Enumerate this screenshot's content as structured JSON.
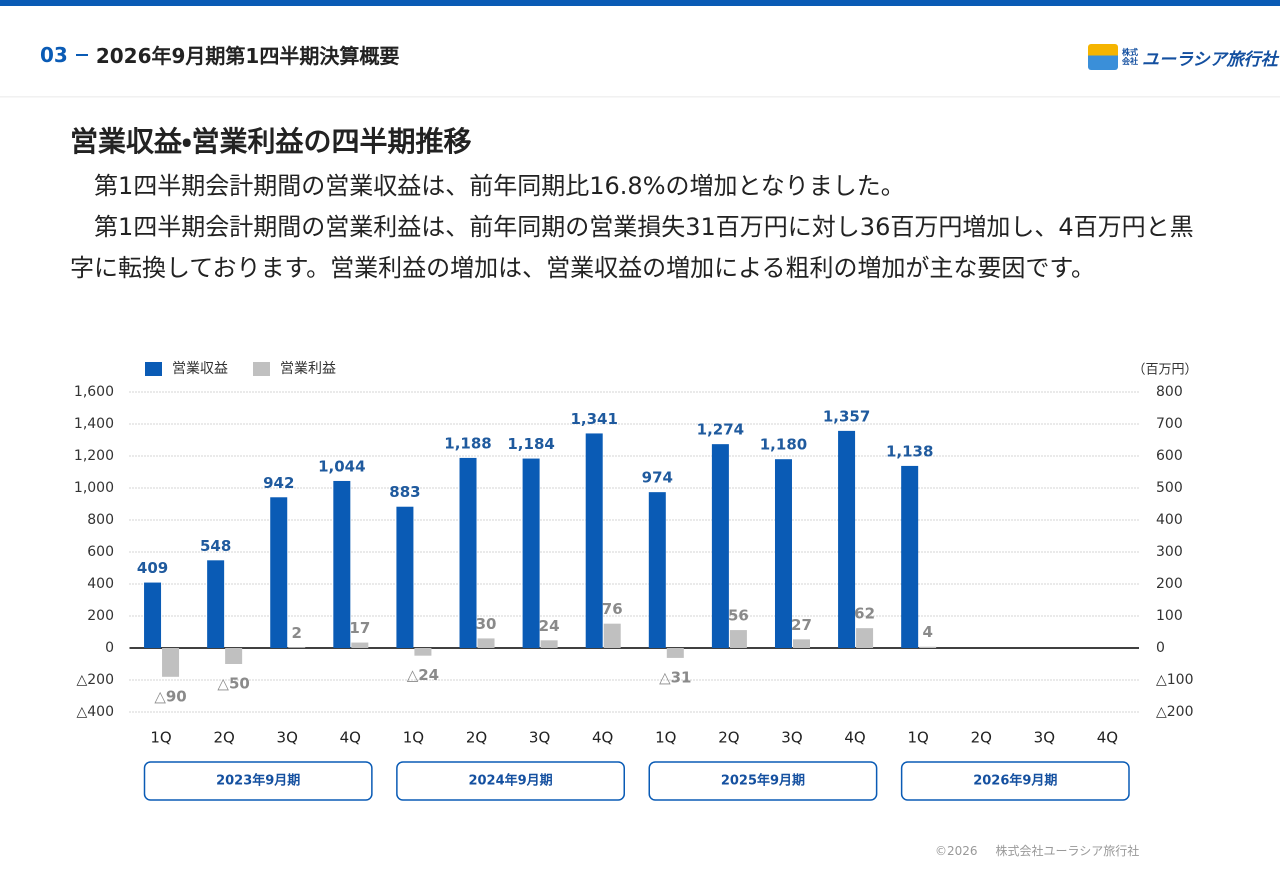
{
  "header": {
    "section": "03",
    "title": "2026年9月期第1四半期決算概要",
    "logo_small": "株式会社",
    "logo_name": "ユーラシア旅行社"
  },
  "heading": "営業収益・営業利益の四半期推移",
  "paragraphs": [
    "第1四半期会計期間の営業収益は、前年同期比16.8%の増加となりました。",
    "第1四半期会計期間の営業利益は、前年同期の営業損失31百万円に対し36百万円増加し、4百万円と黒字に転換しております。営業利益の増加は、営業収益の増加による粗利の増加が主な要因です。"
  ],
  "chart_data": {
    "type": "bar",
    "unit_label": "（百万円）",
    "categories": [
      "1Q",
      "2Q",
      "3Q",
      "4Q",
      "1Q",
      "2Q",
      "3Q",
      "4Q",
      "1Q",
      "2Q",
      "3Q",
      "4Q",
      "1Q",
      "2Q",
      "3Q",
      "4Q"
    ],
    "groups": [
      "2023年9月期",
      "2024年9月期",
      "2025年9月期",
      "2026年9月期"
    ],
    "series": [
      {
        "name": "営業収益",
        "color": "#0a5bb5",
        "label_color": "#1f5a9e",
        "values": [
          409,
          548,
          942,
          1044,
          883,
          1188,
          1184,
          1341,
          974,
          1274,
          1180,
          1357,
          1138,
          null,
          null,
          null
        ],
        "value_labels": [
          "409",
          "548",
          "942",
          "1,044",
          "883",
          "1,188",
          "1,184",
          "1,341",
          "974",
          "1,274",
          "1,180",
          "1,357",
          "1,138",
          null,
          null,
          null
        ]
      },
      {
        "name": "営業利益",
        "color": "#c0c0c0",
        "label_color": "#8a8a8a",
        "axis": "y2",
        "values": [
          -90,
          -50,
          2,
          17,
          -24,
          30,
          24,
          76,
          -31,
          56,
          27,
          62,
          4,
          null,
          null,
          null
        ],
        "value_labels": [
          "△90",
          "△50",
          "2",
          "17",
          "△24",
          "30",
          "24",
          "76",
          "△31",
          "56",
          "27",
          "62",
          "4",
          null,
          null,
          null
        ]
      }
    ],
    "ylim": [
      -400,
      1600
    ],
    "yticks": [
      {
        "value": -400,
        "label": "△400"
      },
      {
        "value": -200,
        "label": "△200"
      },
      0,
      200,
      400,
      600,
      800,
      {
        "value": 1000,
        "label": "1,000"
      },
      {
        "value": 1200,
        "label": "1,200"
      },
      {
        "value": 1400,
        "label": "1,400"
      },
      {
        "value": 1600,
        "label": "1,600"
      }
    ],
    "y2lim": [
      -200,
      800
    ],
    "y2ticks": [
      {
        "value": -200,
        "label": "△200"
      },
      {
        "value": -100,
        "label": "△100"
      },
      0,
      100,
      200,
      300,
      400,
      500,
      600,
      700,
      800
    ],
    "grid": true,
    "legend": "top-left"
  },
  "footer": {
    "copyright": "©2026",
    "company": "株式会社ユーラシア旅行社"
  }
}
